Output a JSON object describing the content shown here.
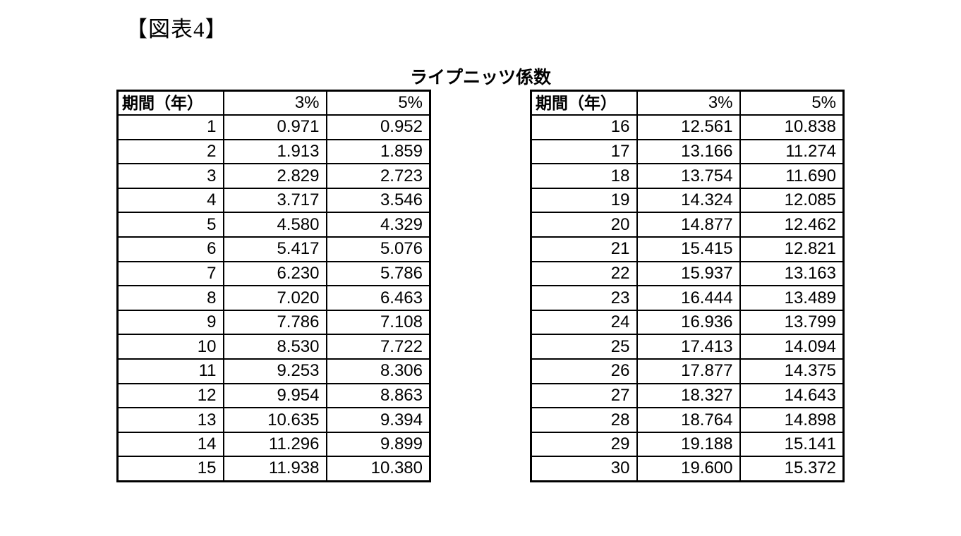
{
  "figure_label": "【図表4】",
  "table_title": "ライプニッツ係数",
  "column_headers": [
    "期間（年）",
    "3%",
    "5%"
  ],
  "tables": [
    {
      "name": "years 1-15",
      "rows": [
        [
          "1",
          "0.971",
          "0.952"
        ],
        [
          "2",
          "1.913",
          "1.859"
        ],
        [
          "3",
          "2.829",
          "2.723"
        ],
        [
          "4",
          "3.717",
          "3.546"
        ],
        [
          "5",
          "4.580",
          "4.329"
        ],
        [
          "6",
          "5.417",
          "5.076"
        ],
        [
          "7",
          "6.230",
          "5.786"
        ],
        [
          "8",
          "7.020",
          "6.463"
        ],
        [
          "9",
          "7.786",
          "7.108"
        ],
        [
          "10",
          "8.530",
          "7.722"
        ],
        [
          "11",
          "9.253",
          "8.306"
        ],
        [
          "12",
          "9.954",
          "8.863"
        ],
        [
          "13",
          "10.635",
          "9.394"
        ],
        [
          "14",
          "11.296",
          "9.899"
        ],
        [
          "15",
          "11.938",
          "10.380"
        ]
      ]
    },
    {
      "name": "years 16-30",
      "rows": [
        [
          "16",
          "12.561",
          "10.838"
        ],
        [
          "17",
          "13.166",
          "11.274"
        ],
        [
          "18",
          "13.754",
          "11.690"
        ],
        [
          "19",
          "14.324",
          "12.085"
        ],
        [
          "20",
          "14.877",
          "12.462"
        ],
        [
          "21",
          "15.415",
          "12.821"
        ],
        [
          "22",
          "15.937",
          "13.163"
        ],
        [
          "23",
          "16.444",
          "13.489"
        ],
        [
          "24",
          "16.936",
          "13.799"
        ],
        [
          "25",
          "17.413",
          "14.094"
        ],
        [
          "26",
          "17.877",
          "14.375"
        ],
        [
          "27",
          "18.327",
          "14.643"
        ],
        [
          "28",
          "18.764",
          "14.898"
        ],
        [
          "29",
          "19.188",
          "15.141"
        ],
        [
          "30",
          "19.600",
          "15.372"
        ]
      ]
    }
  ]
}
